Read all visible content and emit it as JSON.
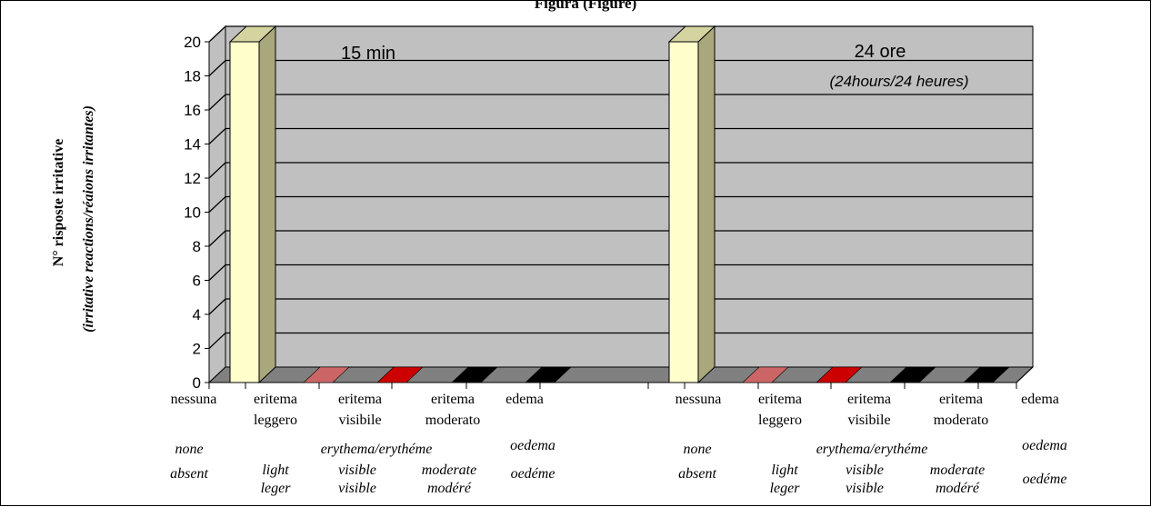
{
  "chart_data": {
    "type": "bar",
    "title": "Figura (Figure)",
    "ylabel": "N° risposte irritative",
    "ylabel_sub": "(irritative reactions/réaions irritantes)",
    "ylim": [
      0,
      20
    ],
    "yticks": [
      "0",
      "2",
      "4",
      "6",
      "8",
      "10",
      "12",
      "14",
      "16",
      "18",
      "20"
    ],
    "panels": [
      {
        "label": "15 min",
        "sublabel": "",
        "categories": [
          "nessuna",
          "eritema leggero",
          "eritema visibile",
          "eritema moderato",
          "edema"
        ],
        "values": [
          20,
          0,
          0,
          0,
          0
        ],
        "colors": [
          "#ffffcc",
          "#cc6666",
          "#cc0000",
          "#000000",
          "#000000"
        ]
      },
      {
        "label": "24 ore",
        "sublabel": "(24hours/24 heures)",
        "categories": [
          "nessuna",
          "eritema leggero",
          "eritema visibile",
          "eritema moderato",
          "edema"
        ],
        "values": [
          20,
          0,
          0,
          0,
          0
        ],
        "colors": [
          "#ffffcc",
          "#cc6666",
          "#cc0000",
          "#000000",
          "#000000"
        ]
      }
    ]
  },
  "labels": {
    "cat1_l1": "nessuna",
    "cat2_l1": "eritema",
    "cat2_l2": "leggero",
    "cat3_l1": "eritema",
    "cat3_l2": "visibile",
    "cat4_l1": "eritema",
    "cat4_l2": "moderato",
    "cat5_l1": "edema",
    "none": "none",
    "absent": "absent",
    "erythema": "erythema/erythéme",
    "light": "light",
    "leger": "leger",
    "visible_en": "visible",
    "visible_fr": "visible",
    "moderate": "moderate",
    "modere": "modéré",
    "oedema": "oedema",
    "oedeme": "oedéme"
  },
  "colors": {
    "wall": "#c0c0c0",
    "floor": "#808080",
    "bar_front": "#ffffcc",
    "bar_side": "#a8a87c",
    "bar_top": "#d4d4a0",
    "grid": "#000000"
  }
}
